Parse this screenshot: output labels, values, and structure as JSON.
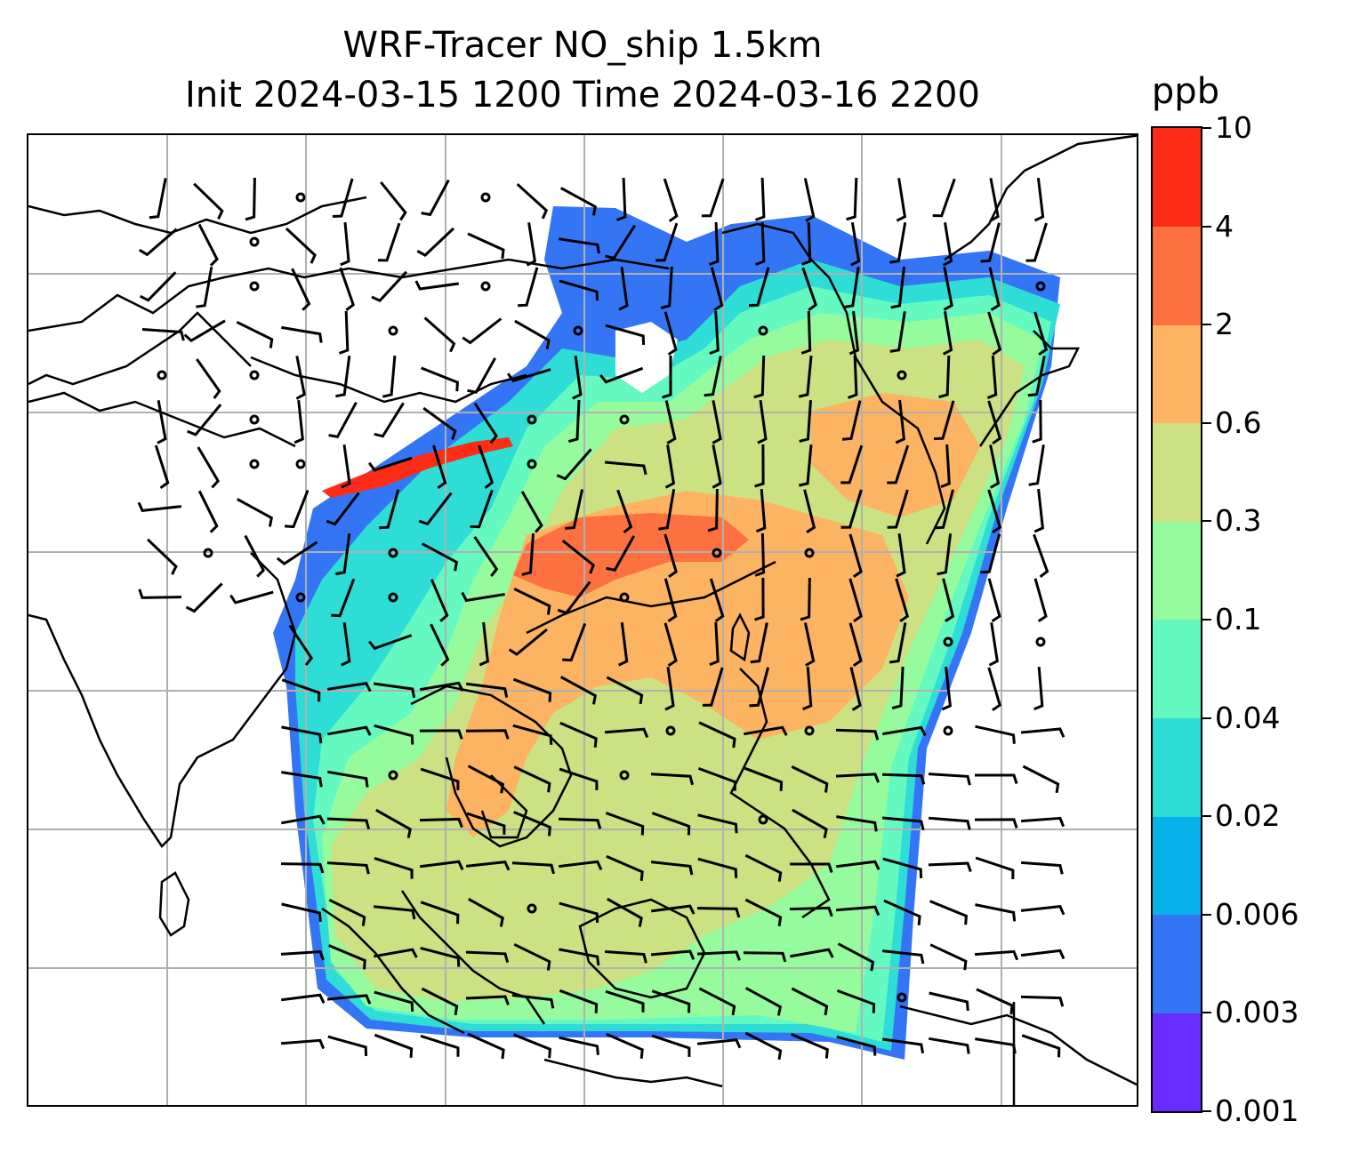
{
  "title": {
    "line1": "WRF-Tracer NO_ship 1.5km",
    "line2": "Init 2024-03-15 1200 Time 2024-03-16 2200"
  },
  "colorbar": {
    "unit": "ppb",
    "levels": [
      "0.001",
      "0.003",
      "0.006",
      "0.02",
      "0.04",
      "0.1",
      "0.3",
      "0.6",
      "2",
      "4",
      "10"
    ],
    "colors": [
      "#6a2bff",
      "#3475f5",
      "#07b2ea",
      "#2dddd6",
      "#63f9c1",
      "#96fb9d",
      "#cbe182",
      "#fcb362",
      "#fc713f",
      "#fc2c16"
    ]
  },
  "map": {
    "background": "#ffffff",
    "coastline_color": "#000000",
    "gridline_color": "#b0b0b0",
    "wind_barb_color": "#000000",
    "gridlines": "on"
  }
}
